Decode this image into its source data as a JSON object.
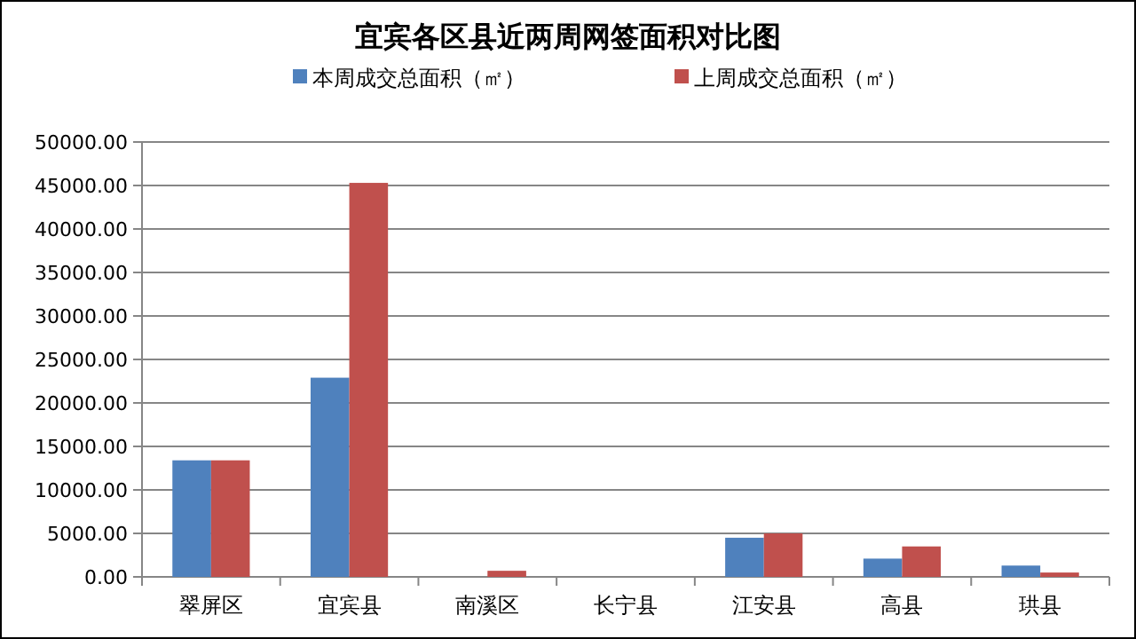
{
  "chart_data": {
    "type": "bar",
    "title": "宜宾各区县近两周网签面积对比图",
    "categories": [
      "翠屏区",
      "宜宾县",
      "南溪区",
      "长宁县",
      "江安县",
      "高县",
      "珙县"
    ],
    "series": [
      {
        "name": "本周成交总面积（㎡）",
        "color": "#4f81bd",
        "values": [
          13400,
          22900,
          0,
          0,
          4500,
          2100,
          1300
        ]
      },
      {
        "name": "上周成交总面积（㎡）",
        "color": "#c0504d",
        "values": [
          13400,
          45300,
          700,
          0,
          5000,
          3500,
          500
        ]
      }
    ],
    "ylim": [
      0,
      50000
    ],
    "yticks": [
      {
        "value": 0,
        "label": "0.00"
      },
      {
        "value": 5000,
        "label": "5000.00"
      },
      {
        "value": 10000,
        "label": "10000.00"
      },
      {
        "value": 15000,
        "label": "15000.00"
      },
      {
        "value": 20000,
        "label": "20000.00"
      },
      {
        "value": 25000,
        "label": "25000.00"
      },
      {
        "value": 30000,
        "label": "30000.00"
      },
      {
        "value": 35000,
        "label": "35000.00"
      },
      {
        "value": 40000,
        "label": "40000.00"
      },
      {
        "value": 45000,
        "label": "45000.00"
      },
      {
        "value": 50000,
        "label": "50000.00"
      }
    ],
    "grid": "y",
    "legend": "top"
  }
}
